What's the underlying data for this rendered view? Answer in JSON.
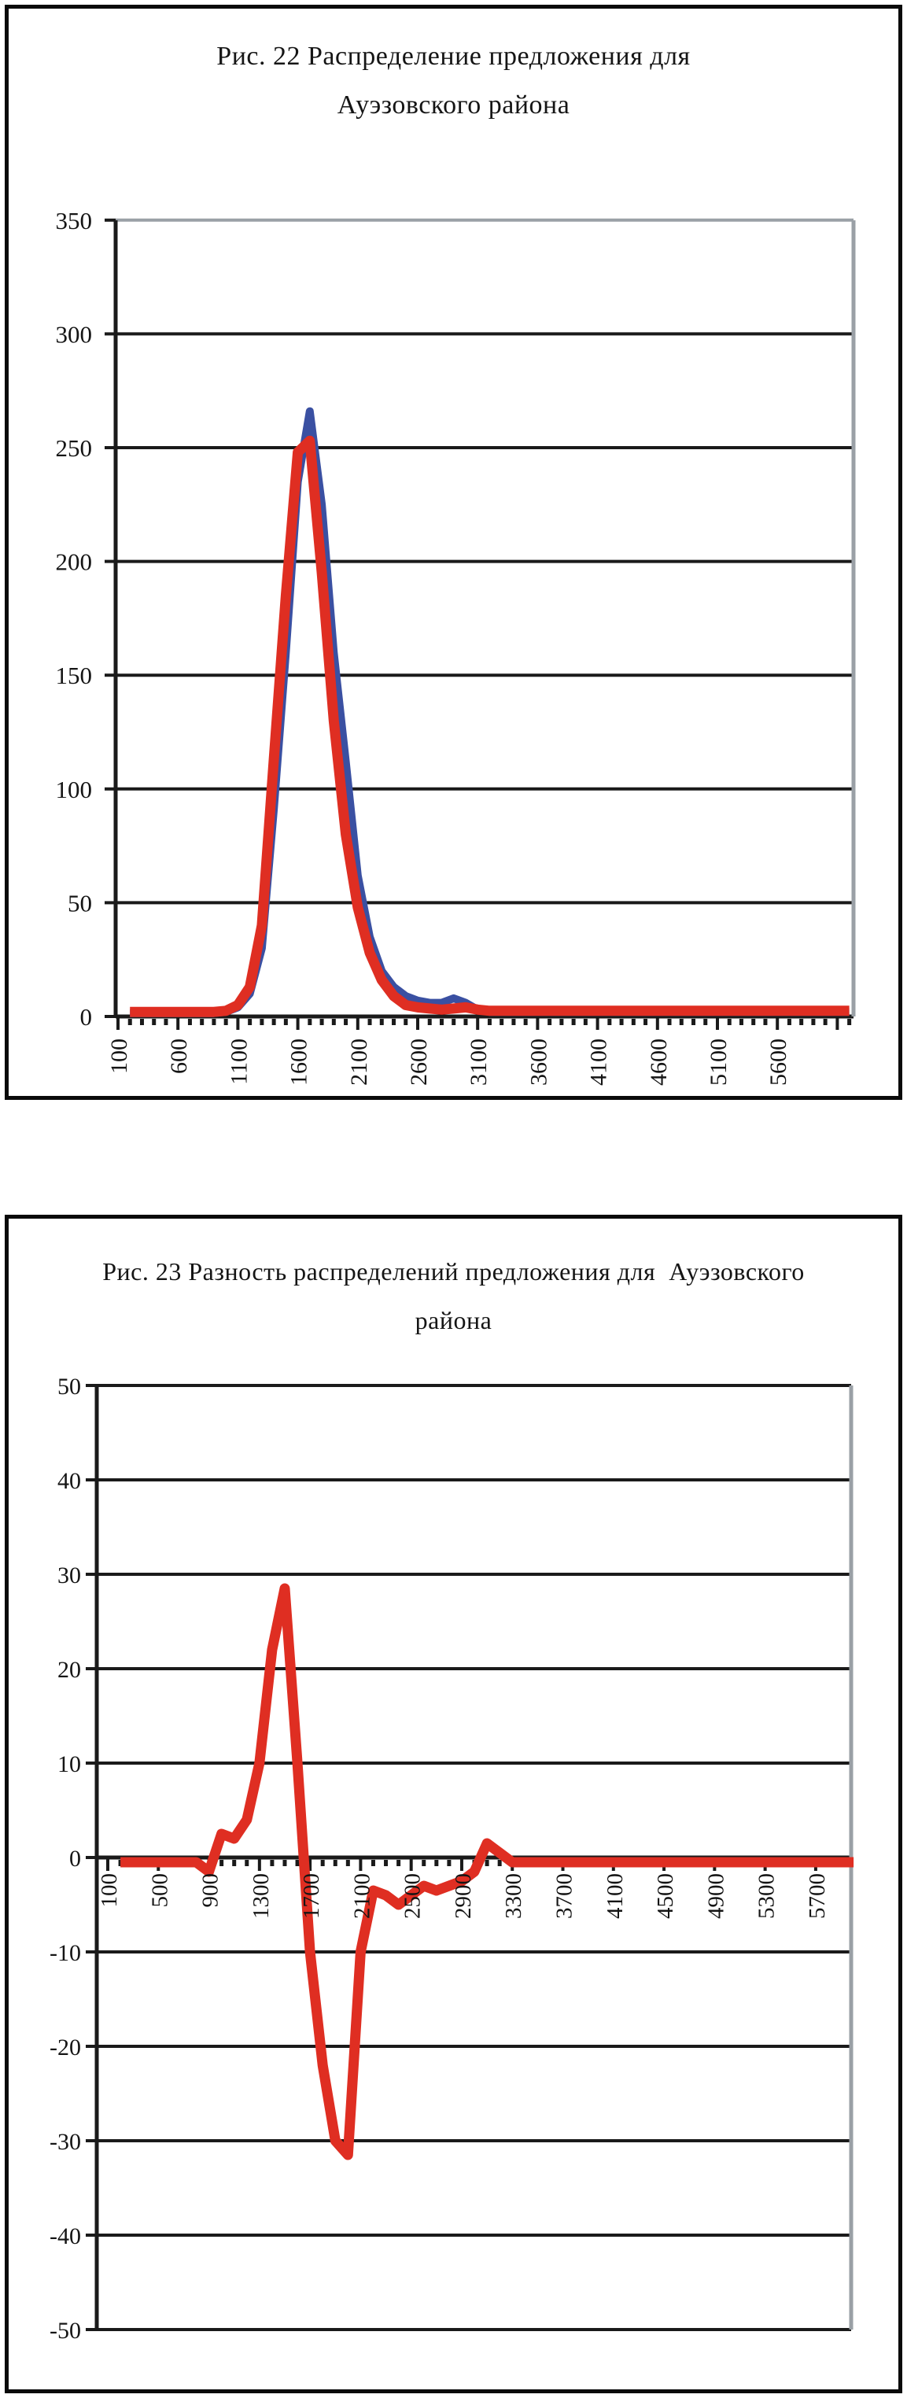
{
  "page": {
    "background": "#ffffff",
    "border_color": "#0a0a0a"
  },
  "colors": {
    "grid_black": "#1a1a1a",
    "plot_border_gray": "#9aa0a6",
    "series_red": "#df2e22",
    "series_blue": "#3a50a2",
    "text": "#151515"
  },
  "chart_data": [
    {
      "type": "line",
      "title": "Рис. 22 Распределение предложения для Ауэзовского района",
      "title_lines": [
        "Рис. 22 Распределение предложения для",
        "Ауэзовского района"
      ],
      "legend": "none",
      "grid": "horizontal",
      "x_start": 200,
      "x_step": 100,
      "x_axis": {
        "first_label": 100,
        "label_step": 500,
        "minor_tick_step": 100,
        "labels": [
          "100",
          "600",
          "1100",
          "1600",
          "2100",
          "2600",
          "3100",
          "3600",
          "4100",
          "4600",
          "5100",
          "5600"
        ]
      },
      "y_axis": {
        "min": 0,
        "max": 350,
        "step": 50,
        "labels": [
          "350",
          "300",
          "250",
          "200",
          "150",
          "100",
          "50",
          "0"
        ]
      },
      "series": [
        {
          "name": "series-blue",
          "color": "#3a50a2",
          "width": 10,
          "values": [
            1.5,
            1.5,
            1.5,
            1.5,
            1.5,
            1.5,
            1.5,
            1.5,
            2,
            4,
            10,
            30,
            91,
            160,
            235,
            266,
            225,
            160,
            112,
            62,
            35,
            20,
            13,
            9,
            7,
            6,
            6,
            8,
            6,
            3,
            2,
            2,
            2,
            2,
            2,
            2,
            2,
            2,
            2,
            2,
            2,
            2,
            2,
            2,
            2,
            2,
            2,
            2,
            2,
            2,
            2,
            2,
            2,
            2,
            2,
            2,
            2,
            2,
            2,
            2,
            2
          ]
        },
        {
          "name": "series-red",
          "color": "#df2e22",
          "width": 13,
          "values": [
            2,
            2,
            2,
            2,
            2,
            2,
            2,
            2,
            2.5,
            5,
            13,
            40,
            113,
            185,
            248,
            253,
            195,
            130,
            80,
            48,
            28,
            16,
            9,
            5,
            4,
            3.5,
            3,
            3.5,
            4,
            3,
            2.5,
            2.5,
            2.5,
            2.5,
            2.5,
            2.5,
            2.5,
            2.5,
            2.5,
            2.5,
            2.5,
            2.5,
            2.5,
            2.5,
            2.5,
            2.5,
            2.5,
            2.5,
            2.5,
            2.5,
            2.5,
            2.5,
            2.5,
            2.5,
            2.5,
            2.5,
            2.5,
            2.5,
            2.5,
            2.5,
            2.5
          ]
        }
      ]
    },
    {
      "type": "line",
      "title": "Рис. 23 Разность распределений предложения для  Ауэзовского района",
      "title_lines": [
        "Рис. 23 Разность распределений предложения для  Ауэзовского",
        "района"
      ],
      "legend": "none",
      "grid": "horizontal",
      "x_start": 200,
      "x_step": 100,
      "x_axis": {
        "first_label": 100,
        "label_step": 400,
        "minor_tick_step": 100,
        "labels": [
          "100",
          "500",
          "900",
          "1300",
          "1700",
          "2100",
          "2500",
          "2900",
          "3300",
          "3700",
          "4100",
          "4500",
          "4900",
          "5300",
          "5700"
        ]
      },
      "y_axis": {
        "min": -50,
        "max": 50,
        "step": 10,
        "labels": [
          "50",
          "40",
          "30",
          "20",
          "10",
          "0",
          "-10",
          "-20",
          "-30",
          "-40",
          "-50"
        ]
      },
      "series": [
        {
          "name": "series-red",
          "color": "#df2e22",
          "width": 13,
          "values": [
            -0.5,
            -0.5,
            -0.5,
            -0.5,
            -0.5,
            -0.5,
            -0.5,
            -1.5,
            2.5,
            2,
            4,
            10,
            22,
            28.5,
            10,
            -10,
            -22,
            -30,
            -31.5,
            -10,
            -3.5,
            -4,
            -5,
            -4,
            -3,
            -3.5,
            -3,
            -2.5,
            -1.5,
            1.5,
            0.5,
            -0.5,
            -0.5,
            -0.5,
            -0.5,
            -0.5,
            -0.5,
            -0.5,
            -0.5,
            -0.5,
            -0.5,
            -0.5,
            -0.5,
            -0.5,
            -0.5,
            -0.5,
            -0.5,
            -0.5,
            -0.5,
            -0.5,
            -0.5,
            -0.5,
            -0.5,
            -0.5,
            -0.5,
            -0.5,
            -0.5,
            -0.5,
            -0.5
          ]
        }
      ]
    }
  ]
}
